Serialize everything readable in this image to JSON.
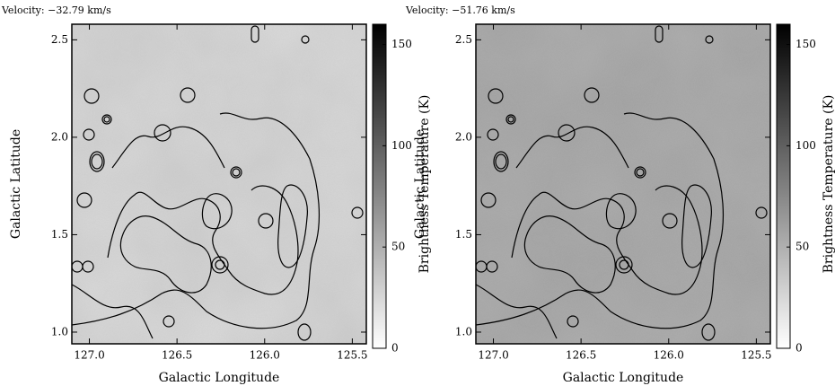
{
  "chart_data": [
    {
      "type": "heatmap",
      "title": "Velocity: −32.79 km/s",
      "xlabel": "Galactic Longitude",
      "ylabel": "Galactic Latitude",
      "xlim": [
        127.1,
        125.42
      ],
      "xticks": [
        {
          "value": 127,
          "label": "127.0"
        },
        126.5,
        {
          "value": 126,
          "label": "126.0"
        },
        125.5
      ],
      "ylim": [
        0.94,
        2.58
      ],
      "yticks": [
        {
          "value": 1,
          "label": "1.0"
        },
        1.5,
        {
          "value": 2,
          "label": "2.0"
        },
        2.5
      ],
      "colorbar": {
        "label": "Brightness Temperature (K)",
        "lim": [
          0,
          160
        ],
        "ticks": [
          0,
          50,
          100,
          150
        ]
      }
    },
    {
      "type": "heatmap",
      "title": "Velocity: −51.76 km/s",
      "xlabel": "Galactic Longitude",
      "ylabel": "Galactic Latitude",
      "xlim": [
        127.1,
        125.42
      ],
      "xticks": [
        {
          "value": 127,
          "label": "127.0"
        },
        126.5,
        {
          "value": 126,
          "label": "126.0"
        },
        125.5
      ],
      "ylim": [
        0.94,
        2.58
      ],
      "yticks": [
        {
          "value": 1,
          "label": "1.0"
        },
        1.5,
        {
          "value": 2,
          "label": "2.0"
        },
        2.5
      ],
      "colorbar": {
        "label": "Brightness Temperature (K)",
        "lim": [
          0,
          160
        ],
        "ticks": [
          0,
          50,
          100,
          150
        ]
      }
    }
  ]
}
